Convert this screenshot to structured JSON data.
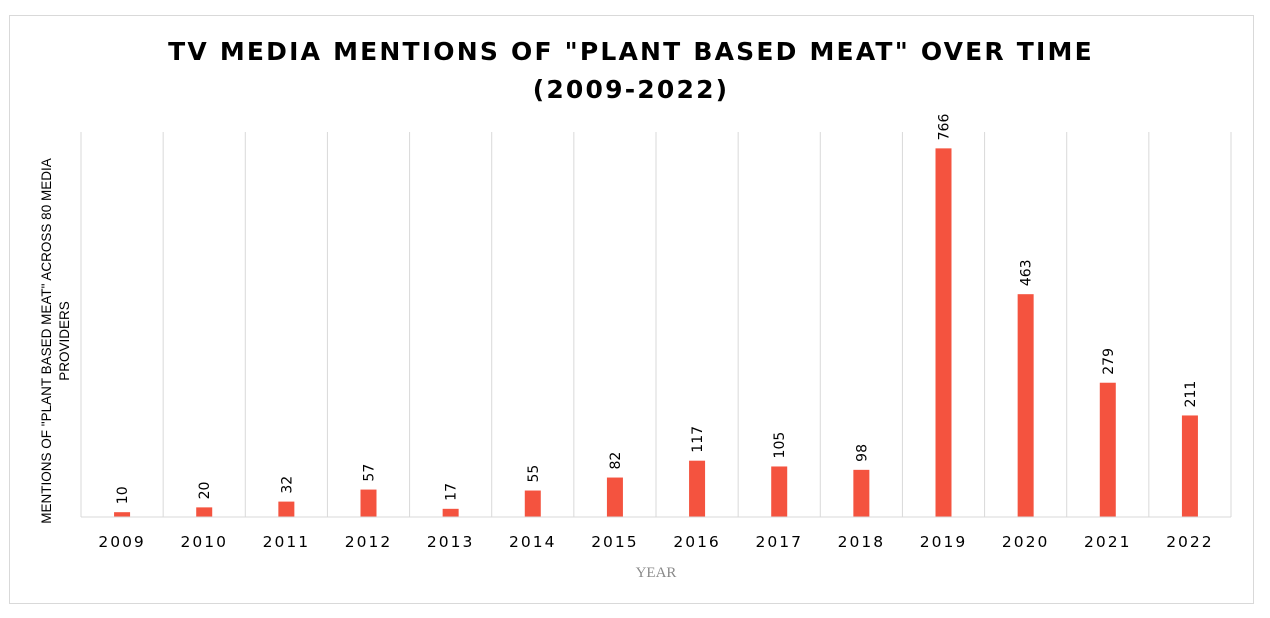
{
  "chart_data": {
    "type": "bar",
    "title_lines": [
      "TV MEDIA MENTIONS OF \"PLANT BASED MEAT\" OVER TIME",
      "(2009-2022)"
    ],
    "xlabel": "YEAR",
    "ylabel_lines": [
      "MENTIONS OF \"PLANT BASED MEAT\" ACROSS 80 MEDIA",
      "PROVIDERS"
    ],
    "categories": [
      "2009",
      "2010",
      "2011",
      "2012",
      "2013",
      "2014",
      "2015",
      "2016",
      "2017",
      "2018",
      "2019",
      "2020",
      "2021",
      "2022"
    ],
    "values": [
      10,
      20,
      32,
      57,
      17,
      55,
      82,
      117,
      105,
      98,
      766,
      463,
      279,
      211
    ],
    "data_labels": true,
    "ylim": [
      0,
      800
    ],
    "grid": "vertical",
    "legend": "none",
    "bar_color": "#f4533f",
    "gridline_color": "#d9d9d9"
  }
}
